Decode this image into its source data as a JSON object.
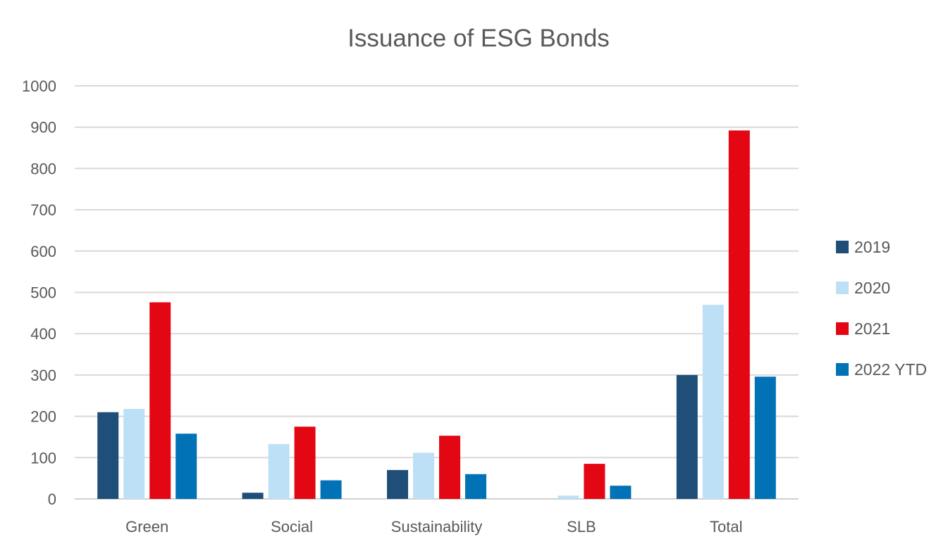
{
  "chart_data": {
    "type": "bar",
    "title": "Issuance of ESG Bonds",
    "xlabel": "",
    "ylabel": "",
    "categories": [
      "Green",
      "Social",
      "Sustainability",
      "SLB",
      "Total"
    ],
    "ylim": [
      0,
      1000
    ],
    "yticks": [
      "0",
      "100",
      "200",
      "300",
      "400",
      "500",
      "600",
      "700",
      "800",
      "900",
      "1000"
    ],
    "grid": true,
    "legend_position": "right",
    "series": [
      {
        "name": "2019",
        "color": "#1f4e79",
        "values": [
          210,
          15,
          70,
          0,
          300
        ]
      },
      {
        "name": "2020",
        "color": "#bde0f7",
        "values": [
          218,
          133,
          112,
          8,
          470
        ]
      },
      {
        "name": "2021",
        "color": "#e30613",
        "values": [
          476,
          175,
          153,
          85,
          892
        ]
      },
      {
        "name": "2022 YTD",
        "color": "#0072b5",
        "values": [
          158,
          45,
          60,
          32,
          296
        ]
      }
    ]
  }
}
